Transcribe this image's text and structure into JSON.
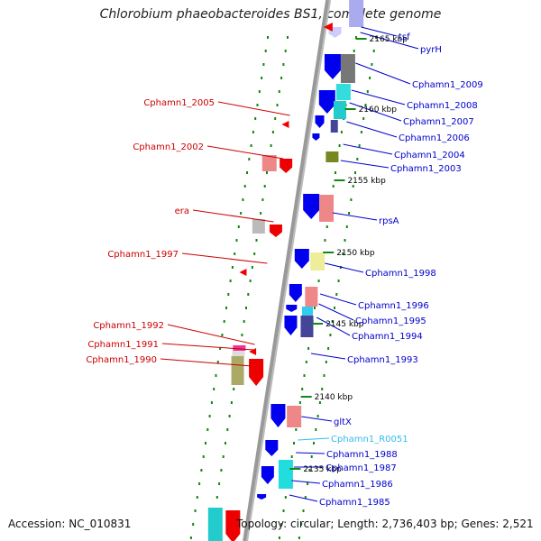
{
  "title": "Chlorobium phaeobacteroides BS1, complete genome",
  "footer": {
    "accession": "Accession: NC_010831",
    "topology": "Topology: circular; Length: 2,736,403 bp; Genes: 2,521"
  },
  "colors": {
    "right_label": "#0000cc",
    "left_label": "#cc0000",
    "rna_label": "#33bbee",
    "tick_label": "#000000",
    "backbone": "#999999",
    "dotted_track": "#118811"
  },
  "scale_ticks": [
    "2165 kbp",
    "2160 kbp",
    "2155 kbp",
    "2150 kbp",
    "2145 kbp",
    "2140 kbp",
    "2135 kbp"
  ],
  "left_genes": [
    "Cphamn1_2005",
    "Cphamn1_2002",
    "era",
    "Cphamn1_1997",
    "Cphamn1_1992",
    "Cphamn1_1991",
    "Cphamn1_1990"
  ],
  "right_genes": [
    "tsf",
    "pyrH",
    "Cphamn1_2009",
    "Cphamn1_2008",
    "Cphamn1_2007",
    "Cphamn1_2006",
    "Cphamn1_2004",
    "Cphamn1_2003",
    "rpsA",
    "Cphamn1_1998",
    "Cphamn1_1996",
    "Cphamn1_1995",
    "Cphamn1_1994",
    "Cphamn1_1993",
    "gltX",
    "Cphamn1_R0051",
    "Cphamn1_1988",
    "Cphamn1_1987",
    "Cphamn1_1986",
    "Cphamn1_1985"
  ]
}
